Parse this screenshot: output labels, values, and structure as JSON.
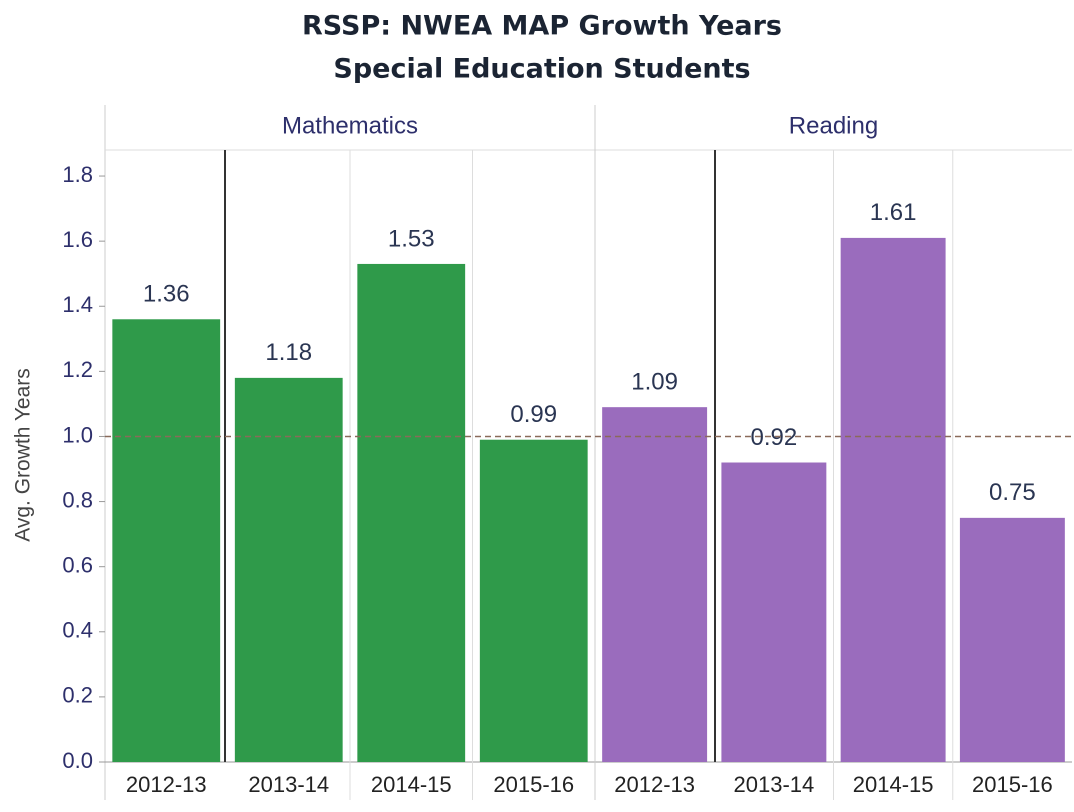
{
  "chart_data": [
    {
      "type": "bar",
      "title": "RSSP: NWEA MAP Growth Years",
      "subtitle": "Special Education Students",
      "panel": "Mathematics",
      "y_label": "Avg. Growth Years",
      "categories": [
        "2012-13",
        "2013-14",
        "2014-15",
        "2015-16"
      ],
      "values": [
        1.36,
        1.18,
        1.53,
        0.99
      ],
      "color": "#2f9a4a",
      "ylim": [
        0,
        1.88
      ],
      "yticks": [
        {
          "value": 0,
          "label": "0.0"
        },
        0.2,
        0.4,
        0.6,
        0.8,
        {
          "value": 1,
          "label": "1.0"
        },
        1.2,
        1.4,
        1.6,
        1.8
      ],
      "reference_line": 1
    },
    {
      "type": "bar",
      "panel": "Reading",
      "categories": [
        "2012-13",
        "2013-14",
        "2014-15",
        "2015-16"
      ],
      "values": [
        1.09,
        0.92,
        1.61,
        0.75
      ],
      "color": "#9a6cbd",
      "ylim": [
        0,
        1.88
      ],
      "reference_line": 1
    }
  ]
}
